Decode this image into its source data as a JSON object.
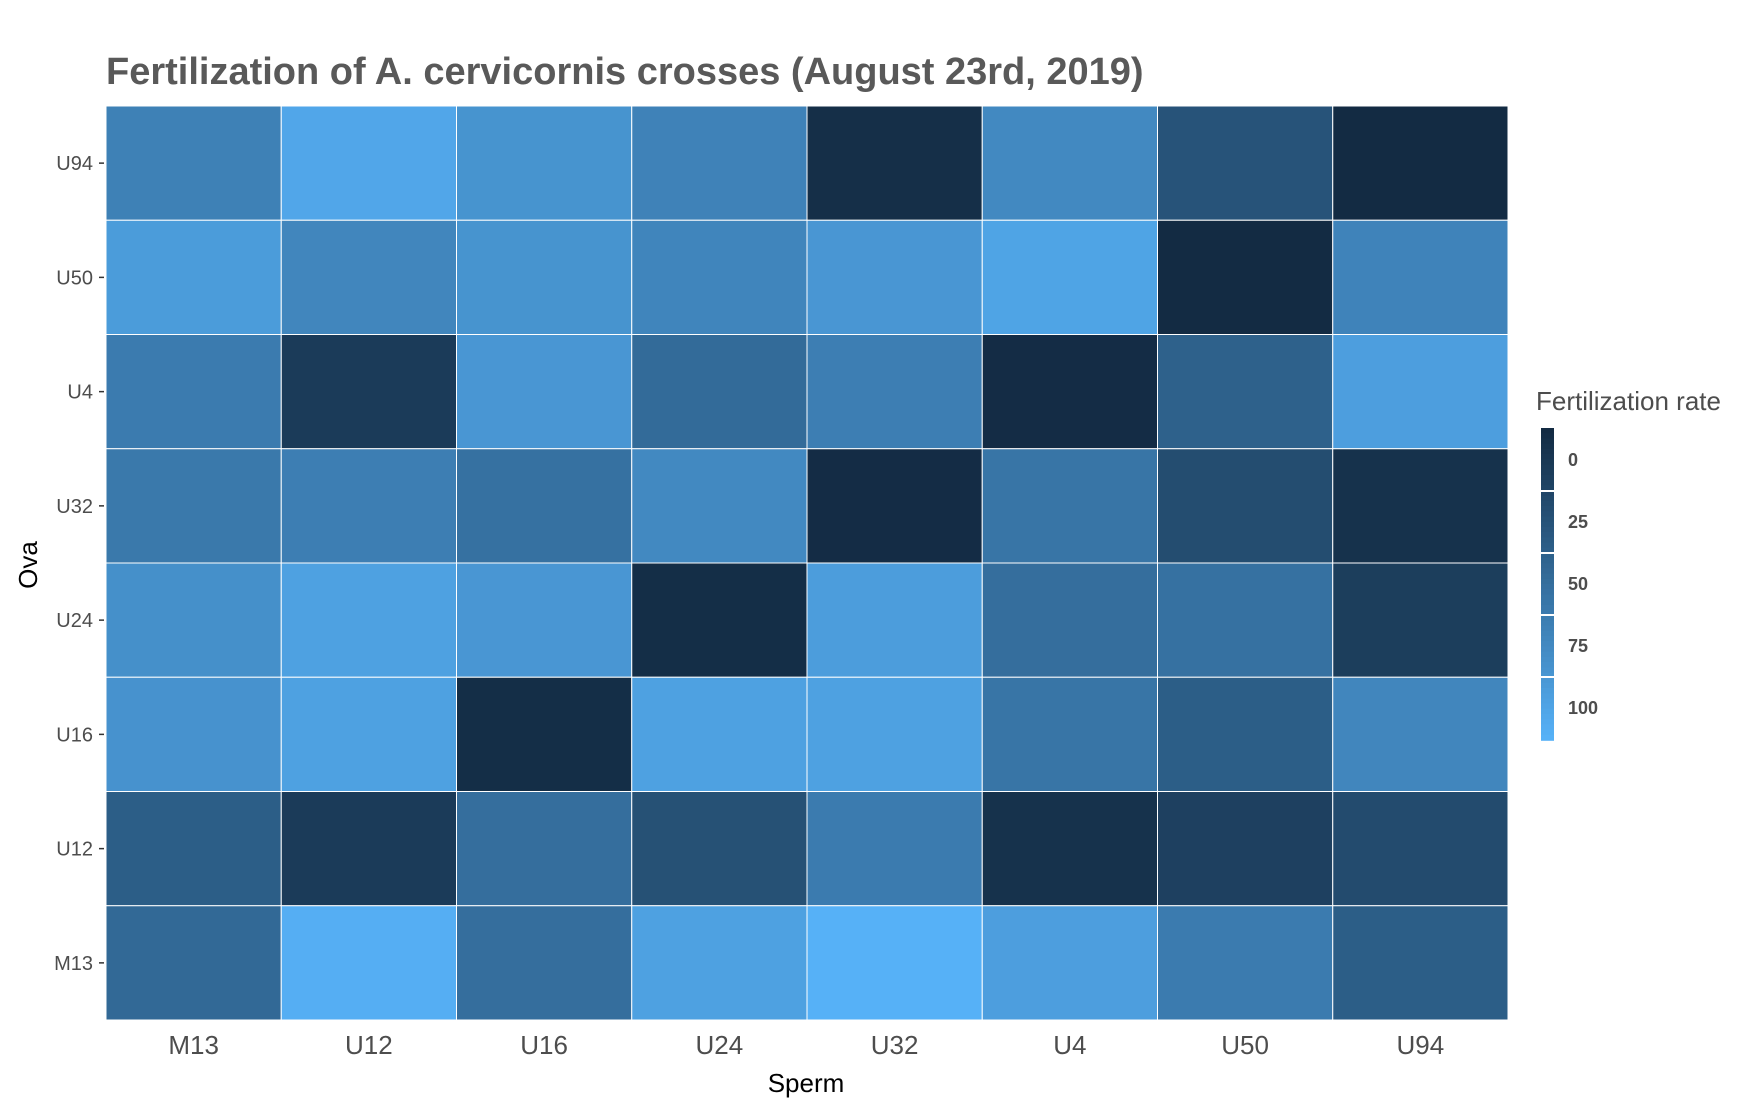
{
  "chart_data": {
    "type": "heatmap",
    "title": "Fertilization of A. cervicornis crosses (August 23rd, 2019)",
    "xlabel": "Sperm",
    "ylabel": "Ova",
    "x_categories": [
      "M13",
      "U12",
      "U16",
      "U24",
      "U32",
      "U4",
      "U50",
      "U94"
    ],
    "y_categories": [
      "U94",
      "U50",
      "U4",
      "U32",
      "U24",
      "U16",
      "U12",
      "M13"
    ],
    "values": [
      [
        64,
        92,
        78,
        65,
        3,
        70,
        30,
        0
      ],
      [
        84,
        68,
        78,
        67,
        80,
        90,
        0,
        66
      ],
      [
        60,
        12,
        80,
        48,
        62,
        1,
        40,
        86
      ],
      [
        58,
        62,
        52,
        70,
        1,
        55,
        25,
        5
      ],
      [
        75,
        88,
        80,
        2,
        85,
        50,
        52,
        14
      ],
      [
        77,
        88,
        2,
        88,
        88,
        55,
        38,
        68
      ],
      [
        38,
        12,
        50,
        28,
        60,
        5,
        16,
        24
      ],
      [
        46,
        98,
        50,
        88,
        100,
        86,
        60,
        38
      ]
    ],
    "legend": {
      "title": "Fertilization rate",
      "labels": [
        "0",
        "25",
        "50",
        "75",
        "100"
      ],
      "position": "right"
    },
    "color_low": "#132B43",
    "color_high": "#56B1F7",
    "range": [
      0,
      100
    ],
    "grid": false
  }
}
